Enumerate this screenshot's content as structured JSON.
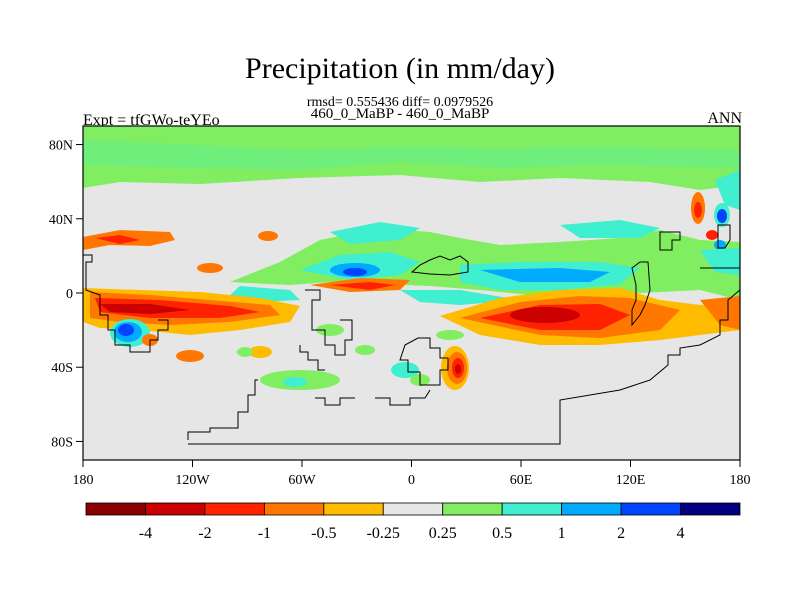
{
  "title": "Precipitation (in mm/day)",
  "stats": "rmsd= 0.555436 diff= 0.0979526",
  "subtitle": "460_0_MaBP - 460_0_MaBP",
  "left_label": "Expt = tfGWo-teYEo",
  "right_label": "ANN",
  "y_ticks": [
    {
      "label": "80N",
      "lat": 80
    },
    {
      "label": "40N",
      "lat": 40
    },
    {
      "label": "0",
      "lat": 0
    },
    {
      "label": "40S",
      "lat": -40
    },
    {
      "label": "80S",
      "lat": -80
    }
  ],
  "x_ticks": [
    {
      "label": "180",
      "lon": -180
    },
    {
      "label": "120W",
      "lon": -120
    },
    {
      "label": "60W",
      "lon": -60
    },
    {
      "label": "0",
      "lon": 0
    },
    {
      "label": "60E",
      "lon": 60
    },
    {
      "label": "120E",
      "lon": 120
    },
    {
      "label": "180",
      "lon": 180
    }
  ],
  "colorbar": {
    "colors": [
      "#8b0000",
      "#cc0000",
      "#ff2200",
      "#ff7700",
      "#ffbb00",
      "#e6e6e6",
      "#80ee60",
      "#40eed0",
      "#00aaff",
      "#0044ff",
      "#000080"
    ],
    "labels": [
      "-4",
      "-2",
      "-1",
      "-0.5",
      "-0.25",
      "0.25",
      "0.5",
      "1",
      "2",
      "4"
    ]
  }
}
